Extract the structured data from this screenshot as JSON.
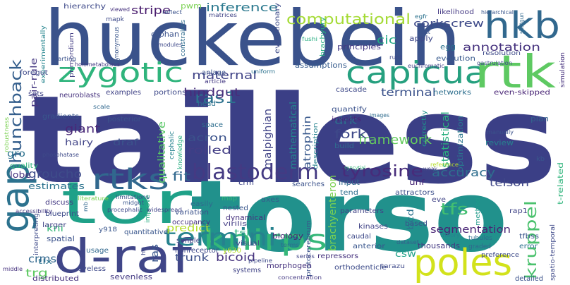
{
  "words": [
    {
      "text": "tailless",
      "color": "#3b3f86"
    },
    {
      "text": "torso",
      "color": "#21918c"
    },
    {
      "text": "huckebein",
      "color": "#3a528b"
    },
    {
      "text": "hkb",
      "color": "#31688e"
    },
    {
      "text": "capicua",
      "color": "#26a07f"
    },
    {
      "text": "rtk",
      "color": "#5ec962"
    },
    {
      "text": "zygotic",
      "color": "#2fb47c"
    },
    {
      "text": "gap",
      "color": "#2c728e"
    },
    {
      "text": "tor",
      "color": "#1fa188"
    },
    {
      "text": "rtks",
      "color": "#31688e"
    },
    {
      "text": "d-raf",
      "color": "#404688"
    },
    {
      "text": "knirps",
      "color": "#35b779"
    },
    {
      "text": "poles",
      "color": "#d2e21b"
    },
    {
      "text": "termini",
      "color": "#26828e"
    },
    {
      "text": "blastoderm",
      "color": "#443a83"
    },
    {
      "text": "hunchback",
      "color": "#355f8d"
    },
    {
      "text": "kruppel",
      "color": "#4ac16d"
    },
    {
      "text": "computational",
      "color": "#a5db36"
    },
    {
      "text": "inference",
      "color": "#2a788e"
    },
    {
      "text": "corkscrew",
      "color": "#3e4a89"
    },
    {
      "text": "stripe",
      "color": "#481b6d"
    },
    {
      "text": "annotation",
      "color": "#46327e"
    },
    {
      "text": "cic",
      "color": "#22a884"
    },
    {
      "text": "maternal",
      "color": "#414487"
    },
    {
      "text": "ras1",
      "color": "#2c728e"
    },
    {
      "text": "hindgut",
      "color": "#472d7b"
    },
    {
      "text": "terminal",
      "color": "#3b528b"
    },
    {
      "text": "tyrosine",
      "color": "#472c7a"
    },
    {
      "text": "accuracy",
      "color": "#2e6e8e"
    },
    {
      "text": "framework",
      "color": "#65cb5e"
    },
    {
      "text": "fork",
      "color": "#3e4989"
    },
    {
      "text": "drk",
      "color": "#2d708e"
    },
    {
      "text": "giant",
      "color": "#482878"
    },
    {
      "text": "acron",
      "color": "#3b528b"
    },
    {
      "text": "rolled",
      "color": "#433e85"
    },
    {
      "text": "fit",
      "color": "#31688e"
    },
    {
      "text": "groucho",
      "color": "#3e4c8a"
    },
    {
      "text": "estimates",
      "color": "#2c738e"
    },
    {
      "text": "telson",
      "color": "#3f4788"
    },
    {
      "text": "tfs",
      "color": "#43bf71"
    },
    {
      "text": "segmentation",
      "color": "#482475"
    },
    {
      "text": "bicoid",
      "color": "#46337e"
    },
    {
      "text": "trunk",
      "color": "#3c4f8a"
    },
    {
      "text": "predict",
      "color": "#b5de2b"
    },
    {
      "text": "brachyenteron",
      "color": "#7ad151"
    },
    {
      "text": "malpighian",
      "color": "#414487"
    },
    {
      "text": "atrophin",
      "color": "#38588c"
    },
    {
      "text": "mathematical",
      "color": "#25848e"
    },
    {
      "text": "qualitative",
      "color": "#57c665"
    },
    {
      "text": "statistical",
      "color": "#2ab07f"
    },
    {
      "text": "optimization",
      "color": "#2a768e"
    },
    {
      "text": "ras",
      "color": "#39568c"
    },
    {
      "text": "crms",
      "color": "#31678e"
    },
    {
      "text": "kni",
      "color": "#37b878"
    },
    {
      "text": "trg",
      "color": "#5ec962"
    },
    {
      "text": "lobe",
      "color": "#46327e"
    },
    {
      "text": "gro",
      "color": "#2c728e"
    },
    {
      "text": "hairy",
      "color": "#414487"
    },
    {
      "text": "draf",
      "color": "#3b528b"
    },
    {
      "text": "pair-rule",
      "color": "#453781"
    },
    {
      "text": "pwm",
      "color": "#7ad151"
    },
    {
      "text": "hierarchy",
      "color": "#3e4989"
    },
    {
      "text": "experimentally",
      "color": "#25858e"
    },
    {
      "text": "primordium",
      "color": "#433e85"
    },
    {
      "text": "orphan",
      "color": "#3b528b"
    },
    {
      "text": "evolutionary",
      "color": "#3e4c8a"
    },
    {
      "text": "brachyury",
      "color": "#27ad81"
    },
    {
      "text": "principles",
      "color": "#443983"
    },
    {
      "text": "apply",
      "color": "#3f4889"
    },
    {
      "text": "egg",
      "color": "#2c728e"
    },
    {
      "text": "resolution",
      "color": "#3e4a89"
    },
    {
      "text": "evolution",
      "color": "#37598c"
    },
    {
      "text": "assumptions",
      "color": "#365c8d"
    },
    {
      "text": "networks",
      "color": "#2e6f8e"
    },
    {
      "text": "even-skipped",
      "color": "#482475"
    },
    {
      "text": "review",
      "color": "#27808e"
    },
    {
      "text": "plan",
      "color": "#33638d"
    },
    {
      "text": "quantify",
      "color": "#3b528b"
    },
    {
      "text": "insects",
      "color": "#482475"
    },
    {
      "text": "cascade",
      "color": "#3e4989"
    },
    {
      "text": "description",
      "color": "#26828e"
    },
    {
      "text": "build",
      "color": "#2f6c8e"
    },
    {
      "text": "correctly",
      "color": "#1f958b"
    },
    {
      "text": "parameters",
      "color": "#414487"
    },
    {
      "text": "input",
      "color": "#31688e"
    },
    {
      "text": "tend",
      "color": "#2e6e8e"
    },
    {
      "text": "unf",
      "color": "#482878"
    },
    {
      "text": "attractors",
      "color": "#3c4f8a"
    },
    {
      "text": "searches",
      "color": "#3b528b"
    },
    {
      "text": "crm",
      "color": "#404688"
    },
    {
      "text": "axes",
      "color": "#355f8d"
    },
    {
      "text": "nested",
      "color": "#39568c"
    },
    {
      "text": "dynamical",
      "color": "#46327e"
    },
    {
      "text": "tsl",
      "color": "#2fb47c"
    },
    {
      "text": "visual",
      "color": "#3e4989"
    },
    {
      "text": "virilis",
      "color": "#433e85"
    },
    {
      "text": "biology",
      "color": "#482475"
    },
    {
      "text": "protocerebrum",
      "color": "#3b528b"
    },
    {
      "text": "kinases",
      "color": "#414487"
    },
    {
      "text": "caudal",
      "color": "#3e4a89"
    },
    {
      "text": "anterior",
      "color": "#39568c"
    },
    {
      "text": "repressors",
      "color": "#46327e"
    },
    {
      "text": "orthodenticle",
      "color": "#3e4c8a"
    },
    {
      "text": "csw",
      "color": "#1fa188"
    },
    {
      "text": "bcd",
      "color": "#2c728e"
    },
    {
      "text": "eve",
      "color": "#414487"
    },
    {
      "text": "based",
      "color": "#3b528b"
    },
    {
      "text": "thousands",
      "color": "#443a83"
    },
    {
      "text": "tarazu",
      "color": "#3e4989"
    },
    {
      "text": "terms",
      "color": "#2f6c8e"
    },
    {
      "text": "dataset",
      "color": "#35608d"
    },
    {
      "text": "theory",
      "color": "#26828e"
    },
    {
      "text": "tubules",
      "color": "#2e6e8e"
    },
    {
      "text": "graded",
      "color": "#31688e"
    },
    {
      "text": "rap1",
      "color": "#414487"
    },
    {
      "text": "method",
      "color": "#1f9a8a"
    },
    {
      "text": "preference",
      "color": "#3e4a89"
    },
    {
      "text": "tfbss",
      "color": "#39568c"
    },
    {
      "text": "error",
      "color": "#2c728e"
    },
    {
      "text": "detailed",
      "color": "#3b528b"
    },
    {
      "text": "morphogen",
      "color": "#46327e"
    },
    {
      "text": "concentration",
      "color": "#443983"
    },
    {
      "text": "systems",
      "color": "#414487"
    },
    {
      "text": "nonreceptor",
      "color": "#3e4989"
    },
    {
      "text": "y630",
      "color": "#b5de2b"
    },
    {
      "text": "simple",
      "color": "#404688"
    },
    {
      "text": "quantitative",
      "color": "#39568c"
    },
    {
      "text": "usage",
      "color": "#31688e"
    },
    {
      "text": "sevenless",
      "color": "#443a83"
    },
    {
      "text": "eyeless",
      "color": "#3e4989"
    },
    {
      "text": "distributed",
      "color": "#46327e"
    },
    {
      "text": "tlx",
      "color": "#2c728e"
    },
    {
      "text": "spatial",
      "color": "#3b528b"
    },
    {
      "text": "larger",
      "color": "#414487"
    },
    {
      "text": "interpreting",
      "color": "#3e4a89"
    },
    {
      "text": "discuss",
      "color": "#443983"
    },
    {
      "text": "blueprint",
      "color": "#3e4c8a"
    },
    {
      "text": "y918",
      "color": "#39568c"
    },
    {
      "text": "variation",
      "color": "#3b528b"
    },
    {
      "text": "occupancy",
      "color": "#46327e"
    },
    {
      "text": "improve",
      "color": "#27ad81"
    },
    {
      "text": "easily",
      "color": "#2f6c8e"
    },
    {
      "text": "procephalic",
      "color": "#3e4989"
    },
    {
      "text": "widespread",
      "color": "#414487"
    },
    {
      "text": "accessibility",
      "color": "#443a83"
    },
    {
      "text": "map",
      "color": "#35b779"
    },
    {
      "text": "limitations",
      "color": "#3b528b"
    },
    {
      "text": "midgut",
      "color": "#39568c"
    },
    {
      "text": "literature",
      "color": "#7ad151"
    },
    {
      "text": "hb",
      "color": "#3e4989"
    },
    {
      "text": "mb",
      "color": "#31688e"
    },
    {
      "text": "middle",
      "color": "#46327e"
    },
    {
      "text": "series",
      "color": "#414487"
    },
    {
      "text": "pipeline",
      "color": "#3e4a89"
    },
    {
      "text": "head",
      "color": "#2c728e"
    },
    {
      "text": "anlage",
      "color": "#3b528b"
    },
    {
      "text": "article",
      "color": "#443983"
    },
    {
      "text": "cephalic",
      "color": "#26828e"
    },
    {
      "text": "knowledge",
      "color": "#27ad81"
    },
    {
      "text": "space",
      "color": "#2e6e8e"
    },
    {
      "text": "portions",
      "color": "#3e4989"
    },
    {
      "text": "examples",
      "color": "#414487"
    },
    {
      "text": "posterior",
      "color": "#3b528b"
    },
    {
      "text": "gradients",
      "color": "#39568c"
    },
    {
      "text": "quality",
      "color": "#2fb47c"
    },
    {
      "text": "robustness",
      "color": "#7ad151"
    },
    {
      "text": "phosphatase",
      "color": "#3e4a89"
    },
    {
      "text": "scale",
      "color": "#31688e"
    },
    {
      "text": "neuroblasts",
      "color": "#46327e"
    },
    {
      "text": "sets",
      "color": "#414487"
    },
    {
      "text": "foregut",
      "color": "#3e4989"
    },
    {
      "text": "starting",
      "color": "#3b528b"
    },
    {
      "text": "holometabolous",
      "color": "#443a83"
    },
    {
      "text": "uniform",
      "color": "#2c728e"
    },
    {
      "text": "synonymous",
      "color": "#39568c"
    },
    {
      "text": "modules",
      "color": "#3e4989"
    },
    {
      "text": "constraints",
      "color": "#2f6c8e"
    },
    {
      "text": "matrices",
      "color": "#414487"
    },
    {
      "text": "reflect",
      "color": "#3b528b"
    },
    {
      "text": "mapk",
      "color": "#3e4a89"
    },
    {
      "text": "viewed",
      "color": "#46327e"
    },
    {
      "text": "likelihood",
      "color": "#443983"
    },
    {
      "text": "hierarchical",
      "color": "#39568c"
    },
    {
      "text": "egfr",
      "color": "#2c728e"
    },
    {
      "text": "gut",
      "color": "#3b528b"
    },
    {
      "text": "shotgun",
      "color": "#31688e"
    },
    {
      "text": "fushi",
      "color": "#27ad81"
    },
    {
      "text": "runt",
      "color": "#3e4989"
    },
    {
      "text": "euchromatic",
      "color": "#414487"
    },
    {
      "text": "gastrulation",
      "color": "#3e4a89"
    },
    {
      "text": "kb",
      "color": "#39568c"
    },
    {
      "text": "simulation",
      "color": "#46327e"
    },
    {
      "text": "t-related",
      "color": "#2fb47c"
    },
    {
      "text": "spatio-temporal",
      "color": "#3e4989"
    },
    {
      "text": "manually",
      "color": "#3b528b"
    },
    {
      "text": "reference",
      "color": "#b5de2b"
    },
    {
      "text": "weak",
      "color": "#414487"
    },
    {
      "text": "images",
      "color": "#2f6c8e"
    },
    {
      "text": "syncytial",
      "color": "#35b779"
    }
  ]
}
